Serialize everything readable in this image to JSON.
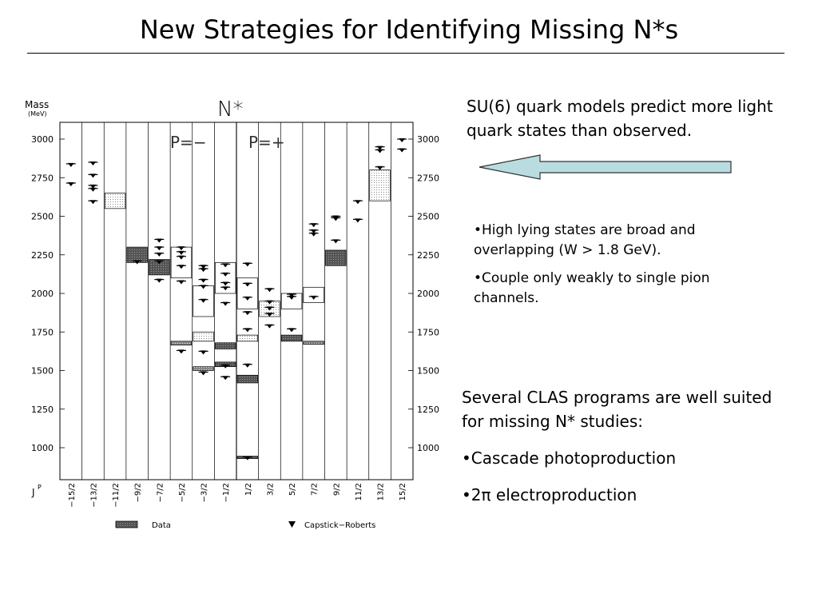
{
  "slide": {
    "title": "New Strategies for Identifying Missing N*s",
    "su6_text": "SU(6) quark models predict more light quark states than observed.",
    "bullet_broad": "•High lying states are broad and overlapping (W > 1.8 GeV).",
    "bullet_couple": "•Couple only weakly to single pion channels.",
    "clas_intro": "Several CLAS programs are well suited for missing N* studies:",
    "bullet_cascade": "•Cascade photoproduction",
    "bullet_2pi": "•2π electroproduction",
    "arrow_color": "#b9dce0"
  },
  "chart_data": {
    "type": "scatter",
    "title": "N*",
    "ylabel_line1": "Mass",
    "ylabel_line2": "(MeV)",
    "xlabel": "J",
    "xlabel_sup": "P",
    "parity_neg": "P=−",
    "parity_pos": "P=+",
    "ylim": [
      850,
      3100
    ],
    "yticks": [
      1000,
      1250,
      1500,
      1750,
      2000,
      2250,
      2500,
      2750,
      3000
    ],
    "categories": [
      "−15/2",
      "−13/2",
      "−11/2",
      "−9/2",
      "−7/2",
      "−5/2",
      "−3/2",
      "−1/2",
      "1/2",
      "3/2",
      "5/2",
      "7/2",
      "9/2",
      "11/2",
      "13/2",
      "15/2"
    ],
    "legend": {
      "data_label": "Data",
      "model_label": "Capstick−Roberts"
    },
    "data_boxes": [
      {
        "j": "−11/2",
        "mass_low": 2550,
        "mass_high": 2650,
        "fill": "light"
      },
      {
        "j": "−9/2",
        "mass_low": 2200,
        "mass_high": 2300,
        "fill": "dark"
      },
      {
        "j": "−7/2",
        "mass_low": 2120,
        "mass_high": 2220,
        "fill": "dark"
      },
      {
        "j": "−5/2",
        "mass_low": 1665,
        "mass_high": 1690,
        "fill": "mid"
      },
      {
        "j": "−5/2",
        "mass_low": 2100,
        "mass_high": 2300,
        "fill": "white"
      },
      {
        "j": "−3/2",
        "mass_low": 1500,
        "mass_high": 1525,
        "fill": "mid"
      },
      {
        "j": "−3/2",
        "mass_low": 1690,
        "mass_high": 1750,
        "fill": "light"
      },
      {
        "j": "−3/2",
        "mass_low": 1850,
        "mass_high": 2050,
        "fill": "white"
      },
      {
        "j": "−1/2",
        "mass_low": 1525,
        "mass_high": 1555,
        "fill": "dark"
      },
      {
        "j": "−1/2",
        "mass_low": 1640,
        "mass_high": 1680,
        "fill": "dark"
      },
      {
        "j": "−1/2",
        "mass_low": 2000,
        "mass_high": 2200,
        "fill": "white"
      },
      {
        "j": "1/2",
        "mass_low": 935,
        "mass_high": 945,
        "fill": "dark"
      },
      {
        "j": "1/2",
        "mass_low": 1420,
        "mass_high": 1470,
        "fill": "dark"
      },
      {
        "j": "1/2",
        "mass_low": 1690,
        "mass_high": 1730,
        "fill": "light"
      },
      {
        "j": "1/2",
        "mass_low": 1900,
        "mass_high": 2100,
        "fill": "white"
      },
      {
        "j": "3/2",
        "mass_low": 1850,
        "mass_high": 1950,
        "fill": "light"
      },
      {
        "j": "5/2",
        "mass_low": 1690,
        "mass_high": 1730,
        "fill": "dark"
      },
      {
        "j": "5/2",
        "mass_low": 1900,
        "mass_high": 2000,
        "fill": "white"
      },
      {
        "j": "7/2",
        "mass_low": 1670,
        "mass_high": 1690,
        "fill": "mid"
      },
      {
        "j": "7/2",
        "mass_low": 1940,
        "mass_high": 2040,
        "fill": "white"
      },
      {
        "j": "9/2",
        "mass_low": 2180,
        "mass_high": 2280,
        "fill": "dark"
      },
      {
        "j": "13/2",
        "mass_low": 2600,
        "mass_high": 2800,
        "fill": "light"
      }
    ],
    "model_points": [
      {
        "j": "−15/2",
        "masses": [
          2715,
          2840
        ]
      },
      {
        "j": "−13/2",
        "masses": [
          2600,
          2680,
          2700,
          2770,
          2850
        ]
      },
      {
        "j": "−9/2",
        "masses": [
          2210
        ]
      },
      {
        "j": "−7/2",
        "masses": [
          2090,
          2210,
          2260,
          2300,
          2350
        ]
      },
      {
        "j": "−5/2",
        "masses": [
          1630,
          2080,
          2180,
          2240,
          2270,
          2300
        ]
      },
      {
        "j": "−3/2",
        "masses": [
          1490,
          1625,
          1960,
          2050,
          2090,
          2160,
          2180
        ]
      },
      {
        "j": "−1/2",
        "masses": [
          1460,
          1535,
          1940,
          2040,
          2070,
          2130,
          2190
        ]
      },
      {
        "j": "1/2",
        "masses": [
          940,
          1540,
          1770,
          1880,
          1975,
          2065,
          2195
        ]
      },
      {
        "j": "3/2",
        "masses": [
          1795,
          1870,
          1910,
          1950,
          2030
        ]
      },
      {
        "j": "5/2",
        "masses": [
          1770,
          1980,
          1995
        ]
      },
      {
        "j": "7/2",
        "masses": [
          1980,
          2390,
          2410,
          2450
        ]
      },
      {
        "j": "9/2",
        "masses": [
          2345,
          2490,
          2500
        ]
      },
      {
        "j": "11/2",
        "masses": [
          2480,
          2600
        ]
      },
      {
        "j": "13/2",
        "masses": [
          2820,
          2930,
          2950
        ]
      },
      {
        "j": "15/2",
        "masses": [
          2935,
          3000
        ]
      }
    ]
  }
}
